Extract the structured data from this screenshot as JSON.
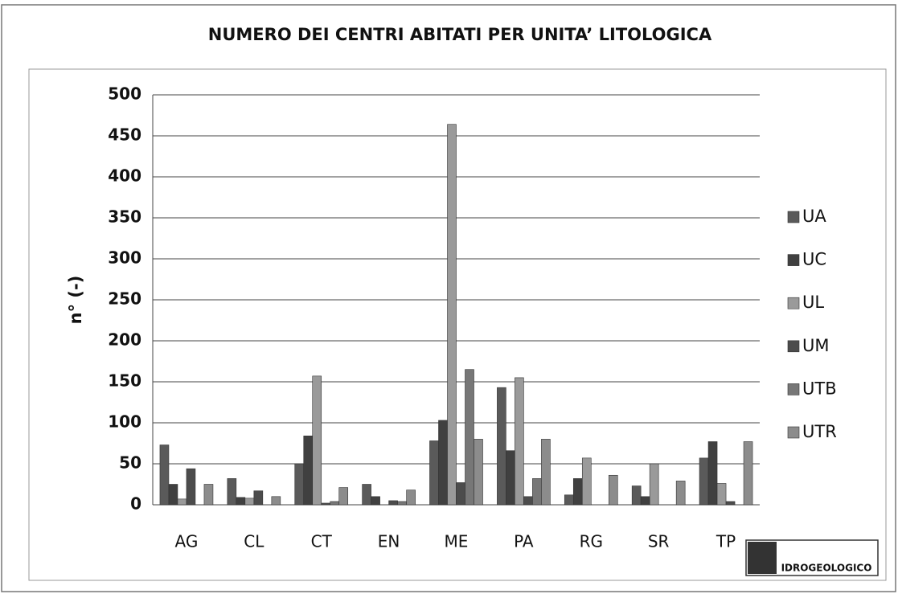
{
  "chart_data": {
    "type": "bar",
    "title": "NUMERO DEI CENTRI ABITATI PER UNITA’ LITOLOGICA",
    "y_label": "n° (-)",
    "categories": [
      "AG",
      "CL",
      "CT",
      "EN",
      "ME",
      "PA",
      "RG",
      "SR",
      "TP"
    ],
    "series": [
      {
        "name": "UA",
        "color": "#5a5a5a",
        "values": [
          73,
          32,
          50,
          25,
          78,
          143,
          12,
          23,
          57
        ]
      },
      {
        "name": "UC",
        "color": "#404040",
        "values": [
          25,
          9,
          84,
          10,
          103,
          66,
          32,
          10,
          77
        ]
      },
      {
        "name": "UL",
        "color": "#9a9a9a",
        "values": [
          7,
          8,
          157,
          0,
          464,
          155,
          57,
          50,
          26
        ]
      },
      {
        "name": "UM",
        "color": "#4c4c4c",
        "values": [
          44,
          17,
          2,
          5,
          27,
          10,
          0,
          0,
          4
        ]
      },
      {
        "name": "UTB",
        "color": "#777777",
        "values": [
          0,
          0,
          4,
          4,
          165,
          32,
          0,
          0,
          0
        ]
      },
      {
        "name": "UTR",
        "color": "#8c8c8c",
        "values": [
          25,
          10,
          21,
          18,
          80,
          80,
          36,
          29,
          77
        ]
      }
    ],
    "ylim": [
      0,
      500
    ],
    "yticks": [
      0,
      50,
      100,
      150,
      200,
      250,
      300,
      350,
      400,
      450,
      500
    ],
    "grid": true,
    "legend": "right",
    "logo_text": "IDROGEOLOGICO"
  }
}
